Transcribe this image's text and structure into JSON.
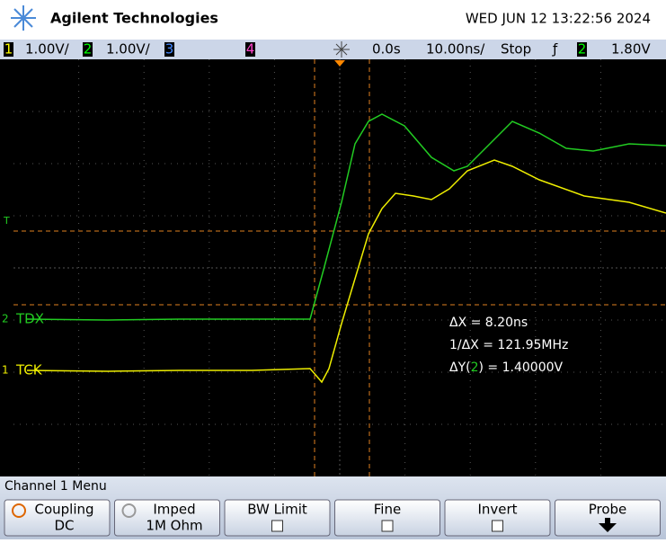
{
  "header": {
    "brand": "Agilent Technologies",
    "datetime": "WED JUN 12 13:22:56 2024"
  },
  "status": {
    "ch1": "1",
    "ch1_scale": "1.00V/",
    "ch2": "2",
    "ch2_scale": "1.00V/",
    "ch3": "3",
    "ch4": "4",
    "delay": "0.0s",
    "timebase": "10.00ns/",
    "run": "Stop",
    "trig_source": "2",
    "trig_level": "1.80V"
  },
  "screen": {
    "trigger_marker": "T",
    "ch2_marker": "2",
    "ch2_label": "TDX",
    "ch1_marker": "1",
    "ch1_label": "TCK",
    "measurements": {
      "dx": "ΔX = 8.20ns",
      "inv_dx": "1/ΔX = 121.95MHz",
      "dy_prefix": "ΔY(",
      "dy_source": "2",
      "dy_suffix": ") = 1.40000V"
    }
  },
  "menu": {
    "title": "Channel 1  Menu",
    "softkeys": [
      {
        "label": "Coupling",
        "value": "DC"
      },
      {
        "label": "Imped",
        "value": "1M Ohm"
      },
      {
        "label": "BW Limit"
      },
      {
        "label": "Fine"
      },
      {
        "label": "Invert"
      },
      {
        "label": "Probe"
      }
    ]
  }
}
